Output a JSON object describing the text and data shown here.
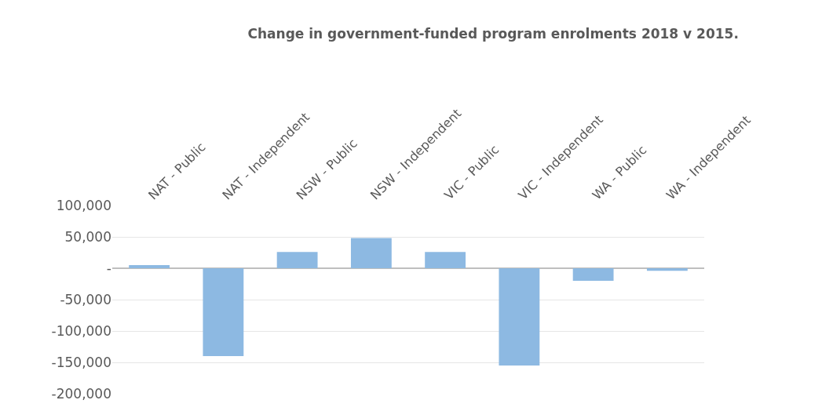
{
  "chart_data": {
    "type": "bar",
    "title": "Change in government-funded program enrolments 2018 v 2015.",
    "categories": [
      "NAT - Public",
      "NAT - Independent",
      "NSW - Public",
      "NSW - Independent",
      "VIC - Public",
      "VIC - Independent",
      "WA - Public",
      "WA - Independent"
    ],
    "values": [
      5000,
      -140000,
      26000,
      48000,
      26000,
      -155000,
      -20000,
      -4000
    ],
    "color": "#8db9e2",
    "ylim": [
      -200000,
      100000
    ],
    "yticks": [
      {
        "value": -200000,
        "label": "-200,000"
      },
      {
        "value": -150000,
        "label": "-150,000"
      },
      {
        "value": -100000,
        "label": "-100,000"
      },
      {
        "value": -50000,
        "label": "-50,000"
      },
      {
        "value": 0,
        "label": "-"
      },
      {
        "value": 50000,
        "label": "50,000"
      },
      {
        "value": 100000,
        "label": "100,000"
      }
    ],
    "grid": "y"
  }
}
